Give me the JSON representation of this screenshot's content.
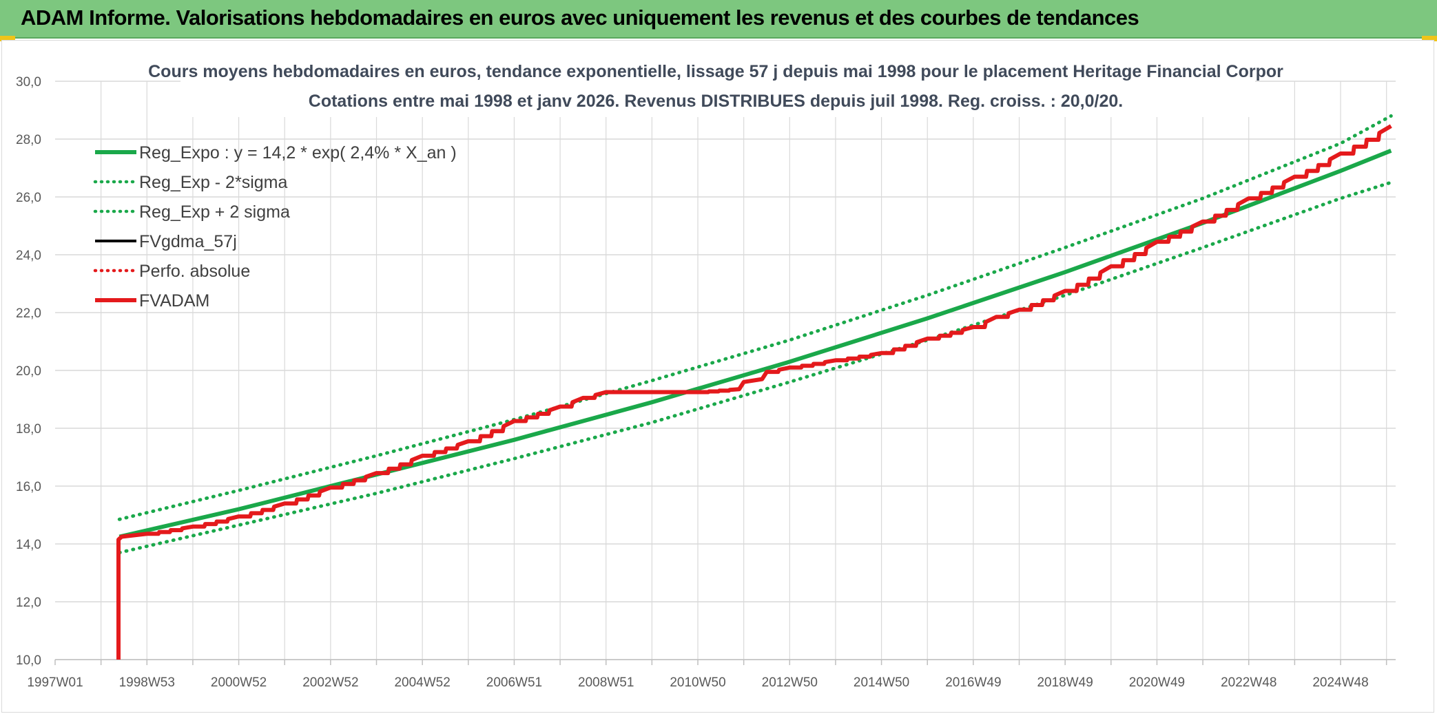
{
  "banner": {
    "title": "ADAM Informe. Valorisations hebdomadaires en euros avec uniquement les revenus et des courbes de tendances"
  },
  "colors": {
    "banner_bg": "#7dc77f",
    "reg_green": "#1aa84a",
    "fvadam_red": "#e41a1c",
    "grid": "#d9d9d9",
    "corner_accent": "#f0c419"
  },
  "chart_data": {
    "type": "line",
    "title_lines": [
      "Cours moyens hebdomadaires en euros, tendance exponentielle, lissage 57 j depuis mai 1998 pour le placement Heritage Financial Corpor",
      "Cotations entre mai 1998 et janv 2026. Revenus DISTRIBUES depuis juil 1998. Reg. croiss. : 20,0/20."
    ],
    "xlabel": "",
    "ylabel": "",
    "ylim": [
      10,
      30
    ],
    "xlim": [
      1997.0,
      2026.2
    ],
    "y_ticks": [
      "10,0",
      "12,0",
      "14,0",
      "16,0",
      "18,0",
      "20,0",
      "22,0",
      "24,0",
      "26,0",
      "28,0",
      "30,0"
    ],
    "x_ticks": [
      {
        "label": "1997W01",
        "x": 1997.0
      },
      {
        "label": "1998W53",
        "x": 1999.0
      },
      {
        "label": "2000W52",
        "x": 2001.0
      },
      {
        "label": "2002W52",
        "x": 2003.0
      },
      {
        "label": "2004W52",
        "x": 2005.0
      },
      {
        "label": "2006W51",
        "x": 2007.0
      },
      {
        "label": "2008W51",
        "x": 2009.0
      },
      {
        "label": "2010W50",
        "x": 2011.0
      },
      {
        "label": "2012W50",
        "x": 2013.0
      },
      {
        "label": "2014W50",
        "x": 2015.0
      },
      {
        "label": "2016W49",
        "x": 2017.0
      },
      {
        "label": "2018W49",
        "x": 2019.0
      },
      {
        "label": "2020W49",
        "x": 2021.0
      },
      {
        "label": "2022W48",
        "x": 2023.0
      },
      {
        "label": "2024W48",
        "x": 2025.0
      }
    ],
    "grid": true,
    "legend_position": "top-left",
    "series": [
      {
        "name": "Reg_Expo : y = 14,2 * exp( 2,4% *  X_an )",
        "style": "solid-thick",
        "color": "#1aa84a",
        "x": [
          1998.4,
          2001,
          2004,
          2007,
          2010,
          2013,
          2016,
          2019,
          2022,
          2025,
          2026.1
        ],
        "y": [
          14.25,
          15.2,
          16.4,
          17.6,
          18.9,
          20.3,
          21.8,
          23.4,
          25.1,
          26.9,
          27.6
        ]
      },
      {
        "name": "Reg_Exp - 2*sigma",
        "style": "dotted",
        "color": "#1aa84a",
        "x": [
          1998.4,
          2001,
          2004,
          2007,
          2010,
          2013,
          2016,
          2019,
          2022,
          2025,
          2026.1
        ],
        "y": [
          13.7,
          14.65,
          15.75,
          16.95,
          18.2,
          19.6,
          21.05,
          22.6,
          24.25,
          25.95,
          26.5
        ]
      },
      {
        "name": "Reg_Exp + 2 sigma",
        "style": "dotted",
        "color": "#1aa84a",
        "x": [
          1998.4,
          2001,
          2004,
          2007,
          2010,
          2013,
          2016,
          2019,
          2022,
          2025,
          2026.1
        ],
        "y": [
          14.85,
          15.85,
          17.05,
          18.3,
          19.65,
          21.05,
          22.6,
          24.25,
          25.95,
          27.85,
          28.8
        ]
      },
      {
        "name": "FVgdma_57j",
        "style": "solid",
        "color": "#000000",
        "x": [],
        "y": []
      },
      {
        "name": "Perfo. absolue",
        "style": "dotted",
        "color": "#e41a1c",
        "x": [],
        "y": []
      },
      {
        "name": "FVADAM",
        "style": "solid-thick",
        "color": "#e41a1c",
        "x": [
          1998.38,
          1998.38,
          1998.45,
          1999,
          2000,
          2001,
          2002,
          2003,
          2004,
          2005,
          2006,
          2007,
          2008,
          2008.5,
          2009.0,
          2010,
          2011,
          2011.9,
          2012.0,
          2012.4,
          2012.5,
          2013,
          2014,
          2015,
          2016,
          2017,
          2017.5,
          2018,
          2019,
          2020,
          2021,
          2022,
          2023,
          2024,
          2025,
          2026.1
        ],
        "y": [
          10.0,
          14.15,
          14.25,
          14.35,
          14.6,
          14.95,
          15.4,
          15.95,
          16.45,
          17.05,
          17.55,
          18.25,
          18.75,
          19.05,
          19.25,
          19.25,
          19.25,
          19.35,
          19.6,
          19.7,
          19.95,
          20.1,
          20.35,
          20.6,
          21.1,
          21.5,
          21.85,
          22.1,
          22.75,
          23.6,
          24.45,
          25.15,
          25.95,
          26.7,
          27.5,
          28.45
        ]
      }
    ]
  }
}
